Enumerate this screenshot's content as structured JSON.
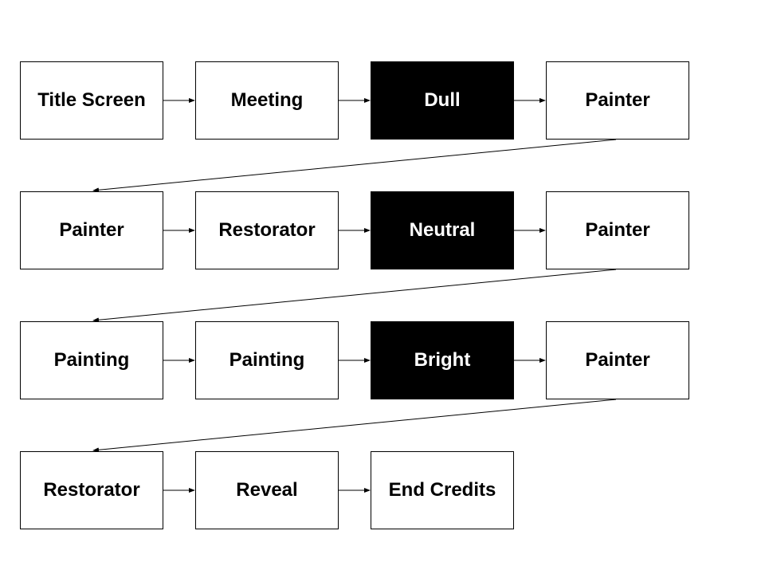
{
  "diagram": {
    "rows": [
      {
        "nodes": [
          {
            "label": "Title Screen",
            "style": "light"
          },
          {
            "label": "Meeting",
            "style": "light"
          },
          {
            "label": "Dull",
            "style": "dark"
          },
          {
            "label": "Painter",
            "style": "light"
          }
        ]
      },
      {
        "nodes": [
          {
            "label": "Painter",
            "style": "light"
          },
          {
            "label": "Restorator",
            "style": "light"
          },
          {
            "label": "Neutral",
            "style": "dark"
          },
          {
            "label": "Painter",
            "style": "light"
          }
        ]
      },
      {
        "nodes": [
          {
            "label": "Painting",
            "style": "light"
          },
          {
            "label": "Painting",
            "style": "light"
          },
          {
            "label": "Bright",
            "style": "dark"
          },
          {
            "label": "Painter",
            "style": "light"
          }
        ]
      },
      {
        "nodes": [
          {
            "label": "Restorator",
            "style": "light"
          },
          {
            "label": "Reveal",
            "style": "light"
          },
          {
            "label": "End Credits",
            "style": "light"
          }
        ]
      }
    ],
    "colors": {
      "line": "#000000",
      "dark_fill": "#000000",
      "light_fill": "#ffffff"
    }
  }
}
